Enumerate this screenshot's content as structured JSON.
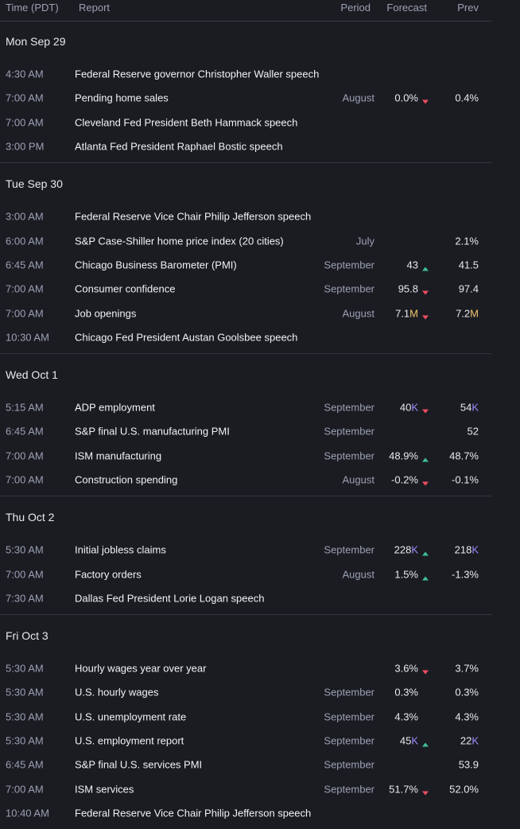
{
  "header": {
    "time": "Time (PDT)",
    "report": "Report",
    "period": "Period",
    "forecast": "Forecast",
    "prev": "Prev"
  },
  "colors": {
    "background": "#1b1c22",
    "up": "#3fbf99",
    "down": "#ef4f5f",
    "suffix_K": "#9d8cff",
    "suffix_M": "#f2c46a"
  },
  "days": [
    {
      "title": "Mon Sep 29",
      "rows": [
        {
          "time": "4:30 AM",
          "report": "Federal Reserve governor Christopher Waller speech",
          "period": "",
          "forecast": "",
          "forecast_suffix": "",
          "arrow": "",
          "prev": "",
          "prev_suffix": ""
        },
        {
          "time": "7:00 AM",
          "report": "Pending home sales",
          "period": "August",
          "forecast": "0.0%",
          "forecast_suffix": "",
          "arrow": "down",
          "prev": "0.4%",
          "prev_suffix": ""
        },
        {
          "time": "7:00 AM",
          "report": "Cleveland Fed President Beth Hammack speech",
          "period": "",
          "forecast": "",
          "forecast_suffix": "",
          "arrow": "",
          "prev": "",
          "prev_suffix": ""
        },
        {
          "time": "3:00 PM",
          "report": "Atlanta Fed President Raphael Bostic speech",
          "period": "",
          "forecast": "",
          "forecast_suffix": "",
          "arrow": "",
          "prev": "",
          "prev_suffix": ""
        }
      ]
    },
    {
      "title": "Tue Sep 30",
      "rows": [
        {
          "time": "3:00 AM",
          "report": "Federal Reserve Vice Chair Philip Jefferson speech",
          "period": "",
          "forecast": "",
          "forecast_suffix": "",
          "arrow": "",
          "prev": "",
          "prev_suffix": ""
        },
        {
          "time": "6:00 AM",
          "report": "S&P Case-Shiller home price index (20 cities)",
          "period": "July",
          "forecast": "",
          "forecast_suffix": "",
          "arrow": "",
          "prev": "2.1%",
          "prev_suffix": ""
        },
        {
          "time": "6:45 AM",
          "report": "Chicago Business Barometer (PMI)",
          "period": "September",
          "forecast": "43",
          "forecast_suffix": "",
          "arrow": "up",
          "prev": "41.5",
          "prev_suffix": ""
        },
        {
          "time": "7:00 AM",
          "report": "Consumer confidence",
          "period": "September",
          "forecast": "95.8",
          "forecast_suffix": "",
          "arrow": "down",
          "prev": "97.4",
          "prev_suffix": ""
        },
        {
          "time": "7:00 AM",
          "report": "Job openings",
          "period": "August",
          "forecast": "7.1",
          "forecast_suffix": "M",
          "arrow": "down",
          "prev": "7.2",
          "prev_suffix": "M"
        },
        {
          "time": "10:30 AM",
          "report": "Chicago Fed President Austan Goolsbee speech",
          "period": "",
          "forecast": "",
          "forecast_suffix": "",
          "arrow": "",
          "prev": "",
          "prev_suffix": ""
        }
      ]
    },
    {
      "title": "Wed Oct 1",
      "rows": [
        {
          "time": "5:15 AM",
          "report": "ADP employment",
          "period": "September",
          "forecast": "40",
          "forecast_suffix": "K",
          "arrow": "down",
          "prev": "54",
          "prev_suffix": "K"
        },
        {
          "time": "6:45 AM",
          "report": "S&P final U.S. manufacturing PMI",
          "period": "September",
          "forecast": "",
          "forecast_suffix": "",
          "arrow": "",
          "prev": "52",
          "prev_suffix": ""
        },
        {
          "time": "7:00 AM",
          "report": "ISM manufacturing",
          "period": "September",
          "forecast": "48.9%",
          "forecast_suffix": "",
          "arrow": "up",
          "prev": "48.7%",
          "prev_suffix": ""
        },
        {
          "time": "7:00 AM",
          "report": "Construction spending",
          "period": "August",
          "forecast": "-0.2%",
          "forecast_suffix": "",
          "arrow": "down",
          "prev": "-0.1%",
          "prev_suffix": ""
        }
      ]
    },
    {
      "title": "Thu Oct 2",
      "rows": [
        {
          "time": "5:30 AM",
          "report": "Initial jobless claims",
          "period": "September",
          "forecast": "228",
          "forecast_suffix": "K",
          "arrow": "up",
          "prev": "218",
          "prev_suffix": "K"
        },
        {
          "time": "7:00 AM",
          "report": "Factory orders",
          "period": "August",
          "forecast": "1.5%",
          "forecast_suffix": "",
          "arrow": "up",
          "prev": "-1.3%",
          "prev_suffix": ""
        },
        {
          "time": "7:30 AM",
          "report": "Dallas Fed President Lorie Logan speech",
          "period": "",
          "forecast": "",
          "forecast_suffix": "",
          "arrow": "",
          "prev": "",
          "prev_suffix": ""
        }
      ]
    },
    {
      "title": "Fri Oct 3",
      "rows": [
        {
          "time": "5:30 AM",
          "report": "Hourly wages year over year",
          "period": "",
          "forecast": "3.6%",
          "forecast_suffix": "",
          "arrow": "down",
          "prev": "3.7%",
          "prev_suffix": ""
        },
        {
          "time": "5:30 AM",
          "report": "U.S. hourly wages",
          "period": "September",
          "forecast": "0.3%",
          "forecast_suffix": "",
          "arrow": "",
          "prev": "0.3%",
          "prev_suffix": ""
        },
        {
          "time": "5:30 AM",
          "report": "U.S. unemployment rate",
          "period": "September",
          "forecast": "4.3%",
          "forecast_suffix": "",
          "arrow": "",
          "prev": "4.3%",
          "prev_suffix": ""
        },
        {
          "time": "5:30 AM",
          "report": "U.S. employment report",
          "period": "September",
          "forecast": "45",
          "forecast_suffix": "K",
          "arrow": "up",
          "prev": "22",
          "prev_suffix": "K"
        },
        {
          "time": "6:45 AM",
          "report": "S&P final U.S. services PMI",
          "period": "September",
          "forecast": "",
          "forecast_suffix": "",
          "arrow": "",
          "prev": "53.9",
          "prev_suffix": ""
        },
        {
          "time": "7:00 AM",
          "report": "ISM services",
          "period": "September",
          "forecast": "51.7%",
          "forecast_suffix": "",
          "arrow": "down",
          "prev": "52.0%",
          "prev_suffix": ""
        },
        {
          "time": "10:40 AM",
          "report": "Federal Reserve Vice Chair Philip Jefferson speech",
          "period": "",
          "forecast": "",
          "forecast_suffix": "",
          "arrow": "",
          "prev": "",
          "prev_suffix": ""
        }
      ]
    }
  ]
}
